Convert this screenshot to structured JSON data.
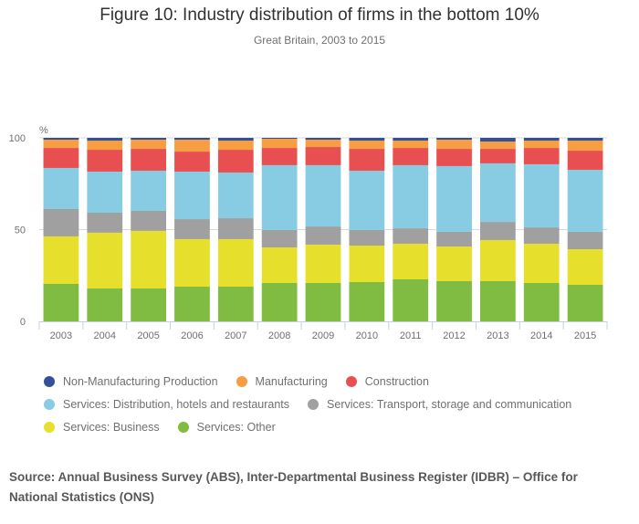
{
  "chart_data": {
    "type": "bar",
    "stacked": true,
    "title": "Figure 10: Industry distribution of firms in the bottom 10%",
    "subtitle": "Great Britain, 2003 to 2015",
    "xlabel": "",
    "ylabel": "%",
    "ylim": [
      0,
      100
    ],
    "yticks": [
      0,
      50,
      100
    ],
    "grid": true,
    "legend_position": "bottom",
    "categories": [
      "2003",
      "2004",
      "2005",
      "2006",
      "2007",
      "2008",
      "2009",
      "2010",
      "2011",
      "2012",
      "2013",
      "2014",
      "2015"
    ],
    "series": [
      {
        "name": "Services: Other",
        "color": "#7fbc41",
        "values": [
          20.4,
          17.9,
          17.9,
          18.9,
          18.9,
          20.9,
          20.9,
          21.4,
          22.9,
          21.9,
          21.9,
          20.9,
          19.9
        ]
      },
      {
        "name": "Services: Business",
        "color": "#e6e02c",
        "values": [
          25.9,
          30.4,
          31.4,
          25.9,
          25.9,
          19.4,
          20.9,
          19.9,
          19.4,
          18.9,
          22.4,
          21.4,
          19.4
        ]
      },
      {
        "name": "Services: Transport, storage and communication",
        "color": "#a0a0a0",
        "values": [
          14.9,
          10.9,
          10.9,
          10.9,
          11.4,
          9.5,
          9.9,
          8.5,
          8.4,
          8.0,
          9.9,
          8.9,
          9.5
        ]
      },
      {
        "name": "Services: Distribution, hotels and restaurants",
        "color": "#87cce2",
        "values": [
          22.4,
          22.4,
          21.9,
          25.9,
          24.9,
          35.3,
          33.4,
          32.3,
          34.4,
          35.8,
          31.9,
          34.4,
          33.8
        ]
      },
      {
        "name": "Construction",
        "color": "#e84f50",
        "values": [
          10.9,
          11.9,
          11.9,
          10.9,
          12.4,
          9.4,
          9.9,
          11.9,
          9.4,
          9.4,
          7.9,
          8.9,
          10.4
        ]
      },
      {
        "name": "Manufacturing",
        "color": "#f79d42",
        "values": [
          4.5,
          5.0,
          5.0,
          6.5,
          5.0,
          5.0,
          4.0,
          4.5,
          4.0,
          5.0,
          4.0,
          4.0,
          5.5
        ]
      },
      {
        "name": "Non-Manufacturing Production",
        "color": "#34509b",
        "values": [
          1.0,
          1.5,
          1.0,
          1.0,
          1.5,
          0.5,
          1.0,
          1.5,
          1.5,
          1.0,
          2.0,
          1.5,
          1.5
        ]
      }
    ]
  },
  "legend": {
    "rows": [
      [
        {
          "label": "Non-Manufacturing Production",
          "color": "#34509b"
        },
        {
          "label": "Manufacturing",
          "color": "#f79d42"
        },
        {
          "label": "Construction",
          "color": "#e84f50"
        }
      ],
      [
        {
          "label": "Services: Distribution, hotels and restaurants",
          "color": "#87cce2"
        },
        {
          "label": "Services: Transport, storage and communication",
          "color": "#a0a0a0"
        }
      ],
      [
        {
          "label": "Services: Business",
          "color": "#e6e02c"
        },
        {
          "label": "Services: Other",
          "color": "#7fbc41"
        }
      ]
    ]
  },
  "source": "Source: Annual Business Survey (ABS), Inter-Departmental Business Register (IDBR) – Office for National Statistics (ONS)"
}
